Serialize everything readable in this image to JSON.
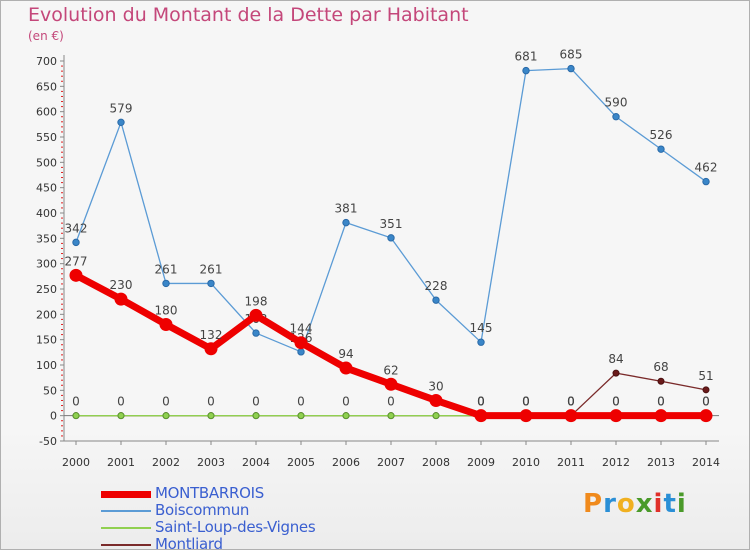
{
  "title": "Evolution du Montant de la Dette par Habitant",
  "unit": "(en €)",
  "logo": {
    "text": "Proxiti",
    "colors": [
      "#f08a1c",
      "#2a8fd6",
      "#f0b020",
      "#4a9a2a",
      "#e0302a",
      "#2a8fd6",
      "#4a9a2a"
    ]
  },
  "chart_data": {
    "type": "line",
    "x": [
      "2000",
      "2001",
      "2002",
      "2003",
      "2004",
      "2005",
      "2006",
      "2007",
      "2008",
      "2009",
      "2010",
      "2011",
      "2012",
      "2013",
      "2014"
    ],
    "ylim": [
      -50,
      700
    ],
    "yticks": [
      -50,
      0,
      50,
      100,
      150,
      200,
      250,
      300,
      350,
      400,
      450,
      500,
      550,
      600,
      650,
      700
    ],
    "grid": false,
    "legend_position": "bottom-left",
    "series": [
      {
        "name": "Boiscommun",
        "color": "#5b9bd5",
        "values": [
          342,
          579,
          261,
          261,
          163,
          126,
          381,
          351,
          228,
          145,
          681,
          685,
          590,
          526,
          462
        ],
        "labels": [
          "342",
          "579",
          "261",
          "261",
          "163",
          "126",
          "381",
          "351",
          "228",
          "145",
          "681",
          "685",
          "590",
          "526",
          "462"
        ]
      },
      {
        "name": "Montliard",
        "color": "#7a2a2a",
        "values": [
          0,
          0,
          0,
          0,
          0,
          0,
          0,
          0,
          0,
          0,
          0,
          0,
          84,
          68,
          51
        ],
        "labels": [
          "0",
          "0",
          "0",
          "0",
          "0",
          "0",
          "0",
          "0",
          "0",
          "0",
          "0",
          "0",
          "84",
          "68",
          "51"
        ]
      },
      {
        "name": "Saint-Loup-des-Vignes",
        "color": "#90d050",
        "values": [
          0,
          0,
          0,
          0,
          0,
          0,
          0,
          0,
          0,
          0,
          0,
          0,
          0,
          0,
          0
        ],
        "labels": [
          "",
          "",
          "",
          "",
          "",
          "",
          "",
          "",
          "",
          "0",
          "0",
          "0",
          "0",
          "0",
          "0"
        ]
      },
      {
        "name": "MONTBARROIS",
        "color": "#ee0000",
        "values": [
          277,
          230,
          180,
          132,
          198,
          144,
          94,
          62,
          30,
          0,
          0,
          0,
          0,
          0,
          0
        ],
        "labels": [
          "277",
          "230",
          "180",
          "132",
          "198",
          "144",
          "94",
          "62",
          "30",
          "0",
          "0",
          "0",
          "0",
          "0",
          "0"
        ]
      }
    ],
    "legend": [
      "MONTBARROIS",
      "Boiscommun",
      "Saint-Loup-des-Vignes",
      "Montliard"
    ]
  }
}
